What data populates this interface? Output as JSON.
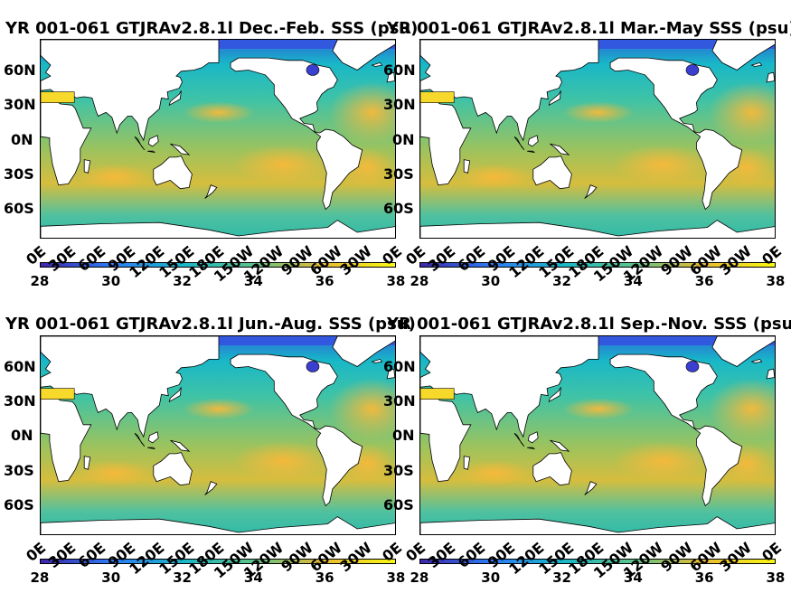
{
  "panels": [
    {
      "title": "YR 001-061 GTJRAv2.8.1l Dec.-Feb. SSS (psu)"
    },
    {
      "title": "YR 001-061 GTJRAv2.8.1l Mar.-May SSS (psu)"
    },
    {
      "title": "YR 001-061 GTJRAv2.8.1l Jun.-Aug. SSS (psu)"
    },
    {
      "title": "YR 001-061 GTJRAv2.8.1l Sep.-Nov. SSS (psu)"
    }
  ],
  "lat_labels": [
    "60N",
    "30N",
    "0N",
    "30S",
    "60S"
  ],
  "lon_labels": [
    "0E",
    "30E",
    "60E",
    "90E",
    "120E",
    "150E",
    "180E",
    "150W",
    "120W",
    "90W",
    "60W",
    "30W",
    "0E"
  ],
  "colorbar": {
    "ticks": [
      "28",
      "30",
      "32",
      "34",
      "36",
      "38"
    ],
    "range": [
      28,
      38
    ],
    "colors": [
      "#3e26a8",
      "#2c7bf7",
      "#18b7c8",
      "#5cc48b",
      "#e9ba30",
      "#f9f814"
    ]
  }
}
